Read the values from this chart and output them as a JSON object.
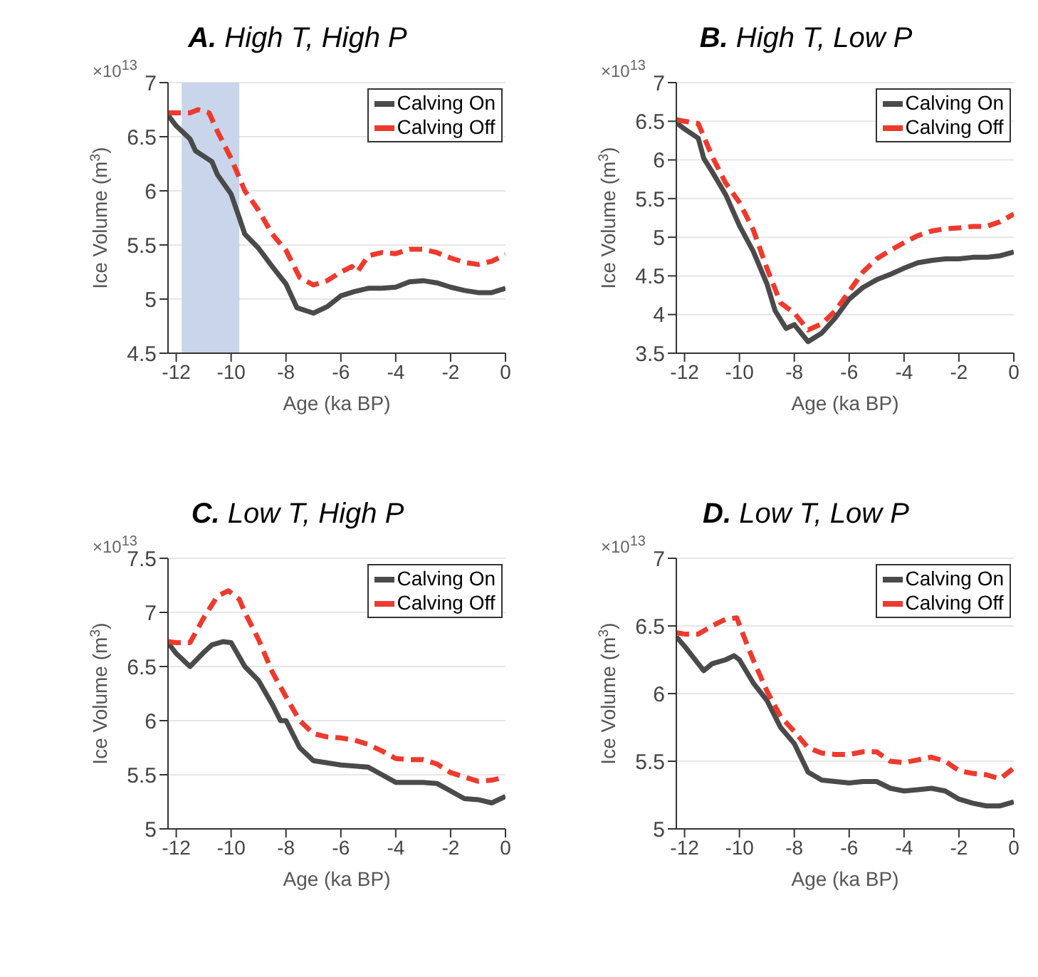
{
  "chart_data": [
    {
      "type": "line",
      "title": "A. High T, High P",
      "xlabel": "Age (ka BP)",
      "ylabel": "Ice Volume (m$^{3}$)",
      "annotations": [
        "×10$^{13}$"
      ],
      "xlim": [
        -12.3,
        0
      ],
      "xticks": [
        -12,
        -10,
        -8,
        -6,
        -4,
        -2,
        0
      ],
      "ylim": [
        4.5,
        7
      ],
      "yticks": [
        4.5,
        5,
        5.5,
        6,
        6.5,
        7
      ],
      "grid": "y",
      "legend": "top right",
      "bands": [
        {
          "axis": "x",
          "from": -11.8,
          "to": -9.7,
          "color": "#c9d5ea"
        }
      ],
      "series": [
        {
          "name": "Calving On",
          "color": "#4a4a4a",
          "line_style": "solid",
          "x": [
            -12.3,
            -12,
            -11.5,
            -11.3,
            -11,
            -10.7,
            -10.5,
            -10,
            -9.7,
            -9.5,
            -9,
            -8.5,
            -8,
            -7.6,
            -7,
            -6.5,
            -6,
            -5.5,
            -5,
            -4.5,
            -4,
            -3.5,
            -3,
            -2.5,
            -2,
            -1.5,
            -1,
            -0.5,
            0
          ],
          "values": [
            6.7,
            6.6,
            6.48,
            6.37,
            6.32,
            6.27,
            6.15,
            5.97,
            5.75,
            5.6,
            5.47,
            5.3,
            5.14,
            4.92,
            4.87,
            4.93,
            5.03,
            5.07,
            5.1,
            5.1,
            5.11,
            5.16,
            5.17,
            5.15,
            5.11,
            5.08,
            5.06,
            5.06,
            5.1
          ]
        },
        {
          "name": "Calving Off",
          "color": "#ee3a2e",
          "line_style": "dashed",
          "x": [
            -12.3,
            -12,
            -11.5,
            -11.2,
            -10.8,
            -10.5,
            -10,
            -9.5,
            -9,
            -8.5,
            -8,
            -7.5,
            -7,
            -6.5,
            -6,
            -5.6,
            -5.4,
            -5,
            -4.5,
            -4,
            -3.5,
            -3,
            -2.5,
            -2,
            -1.5,
            -1,
            -0.5,
            0
          ],
          "values": [
            6.72,
            6.72,
            6.72,
            6.75,
            6.72,
            6.55,
            6.3,
            6.0,
            5.82,
            5.6,
            5.45,
            5.2,
            5.13,
            5.17,
            5.25,
            5.3,
            5.25,
            5.4,
            5.43,
            5.42,
            5.46,
            5.46,
            5.43,
            5.38,
            5.34,
            5.32,
            5.35,
            5.41
          ]
        }
      ]
    },
    {
      "type": "line",
      "title": "B. High T, Low P",
      "xlabel": "Age (ka BP)",
      "ylabel": "Ice Volume (m$^{3}$)",
      "annotations": [
        "×10$^{13}$"
      ],
      "xlim": [
        -12.3,
        0
      ],
      "xticks": [
        -12,
        -10,
        -8,
        -6,
        -4,
        -2,
        0
      ],
      "ylim": [
        3.5,
        7
      ],
      "yticks": [
        3.5,
        4,
        4.5,
        5,
        5.5,
        6,
        6.5,
        7
      ],
      "grid": "y",
      "legend": "top right",
      "series": [
        {
          "name": "Calving On",
          "color": "#4a4a4a",
          "line_style": "solid",
          "x": [
            -12.3,
            -12,
            -11.5,
            -11.3,
            -11,
            -10.5,
            -10,
            -9.5,
            -9,
            -8.7,
            -8.3,
            -8,
            -7.5,
            -7,
            -6.5,
            -6,
            -5.5,
            -5,
            -4.5,
            -4,
            -3.5,
            -3,
            -2.5,
            -2,
            -1.5,
            -1,
            -0.5,
            0
          ],
          "values": [
            6.48,
            6.4,
            6.28,
            6.02,
            5.85,
            5.55,
            5.15,
            4.82,
            4.4,
            4.05,
            3.82,
            3.87,
            3.65,
            3.76,
            3.96,
            4.2,
            4.35,
            4.45,
            4.52,
            4.6,
            4.67,
            4.7,
            4.72,
            4.72,
            4.74,
            4.74,
            4.76,
            4.81
          ]
        },
        {
          "name": "Calving Off",
          "color": "#ee3a2e",
          "line_style": "dashed",
          "x": [
            -12.3,
            -12,
            -11.5,
            -11,
            -10.5,
            -10,
            -9.5,
            -9,
            -8.5,
            -8,
            -7.5,
            -7,
            -6.5,
            -6,
            -5.5,
            -5,
            -4.5,
            -4,
            -3.5,
            -3,
            -2.5,
            -2,
            -1.5,
            -1,
            -0.5,
            0
          ],
          "values": [
            6.52,
            6.5,
            6.47,
            6.05,
            5.7,
            5.45,
            5.1,
            4.6,
            4.15,
            4.02,
            3.8,
            3.88,
            4.05,
            4.3,
            4.55,
            4.72,
            4.83,
            4.93,
            5.02,
            5.08,
            5.11,
            5.12,
            5.14,
            5.14,
            5.2,
            5.3
          ]
        }
      ]
    },
    {
      "type": "line",
      "title": "C. Low T, High P",
      "xlabel": "Age (ka BP)",
      "ylabel": "Ice Volume (m$^{3}$)",
      "annotations": [
        "×10$^{13}$"
      ],
      "xlim": [
        -12.3,
        0
      ],
      "xticks": [
        -12,
        -10,
        -8,
        -6,
        -4,
        -2,
        0
      ],
      "ylim": [
        5,
        7.5
      ],
      "yticks": [
        5,
        5.5,
        6,
        6.5,
        7,
        7.5
      ],
      "grid": "y",
      "legend": "top right",
      "series": [
        {
          "name": "Calving On",
          "color": "#4a4a4a",
          "line_style": "solid",
          "x": [
            -12.3,
            -12,
            -11.5,
            -11,
            -10.7,
            -10.3,
            -10,
            -9.5,
            -9,
            -8.5,
            -8.2,
            -8,
            -7.5,
            -7,
            -6.5,
            -6,
            -5.5,
            -5,
            -4.5,
            -4,
            -3.5,
            -3,
            -2.5,
            -2,
            -1.5,
            -1,
            -0.5,
            0
          ],
          "values": [
            6.72,
            6.62,
            6.5,
            6.63,
            6.7,
            6.73,
            6.72,
            6.5,
            6.37,
            6.15,
            6.0,
            6.0,
            5.75,
            5.63,
            5.61,
            5.59,
            5.58,
            5.57,
            5.5,
            5.43,
            5.43,
            5.43,
            5.42,
            5.35,
            5.28,
            5.27,
            5.24,
            5.3
          ]
        },
        {
          "name": "Calving Off",
          "color": "#ee3a2e",
          "line_style": "dashed",
          "x": [
            -12.3,
            -12,
            -11.5,
            -11,
            -10.5,
            -10.1,
            -9.7,
            -9.5,
            -9,
            -8.5,
            -8,
            -7.5,
            -7,
            -6.5,
            -6,
            -5.5,
            -5,
            -4.5,
            -4,
            -3.5,
            -3,
            -2.5,
            -2,
            -1.5,
            -1,
            -0.5,
            0
          ],
          "values": [
            6.73,
            6.72,
            6.72,
            6.95,
            7.15,
            7.2,
            7.12,
            7.0,
            6.75,
            6.45,
            6.22,
            6.0,
            5.88,
            5.85,
            5.84,
            5.82,
            5.78,
            5.72,
            5.65,
            5.64,
            5.64,
            5.6,
            5.52,
            5.48,
            5.44,
            5.45,
            5.48
          ]
        }
      ]
    },
    {
      "type": "line",
      "title": "D. Low T, Low P",
      "xlabel": "Age (ka BP)",
      "ylabel": "Ice Volume (m$^{3}$)",
      "annotations": [
        "×10$^{13}$"
      ],
      "xlim": [
        -12.3,
        0
      ],
      "xticks": [
        -12,
        -10,
        -8,
        -6,
        -4,
        -2,
        0
      ],
      "ylim": [
        5,
        7
      ],
      "yticks": [
        5,
        5.5,
        6,
        6.5,
        7
      ],
      "grid": "y",
      "legend": "top right",
      "series": [
        {
          "name": "Calving On",
          "color": "#4a4a4a",
          "line_style": "solid",
          "x": [
            -12.3,
            -12,
            -11.5,
            -11.3,
            -11,
            -10.5,
            -10.2,
            -10,
            -9.5,
            -9,
            -8.5,
            -8,
            -7.5,
            -7,
            -6.5,
            -6,
            -5.5,
            -5,
            -4.5,
            -4,
            -3.5,
            -3,
            -2.5,
            -2,
            -1.5,
            -1,
            -0.5,
            0
          ],
          "values": [
            6.42,
            6.35,
            6.22,
            6.17,
            6.22,
            6.25,
            6.28,
            6.25,
            6.08,
            5.95,
            5.75,
            5.63,
            5.42,
            5.36,
            5.35,
            5.34,
            5.35,
            5.35,
            5.3,
            5.28,
            5.29,
            5.3,
            5.28,
            5.22,
            5.19,
            5.17,
            5.17,
            5.2
          ]
        },
        {
          "name": "Calving Off",
          "color": "#ee3a2e",
          "line_style": "dashed",
          "x": [
            -12.3,
            -12,
            -11.5,
            -11,
            -10.5,
            -10.1,
            -9.7,
            -9.5,
            -9,
            -8.5,
            -8,
            -7.5,
            -7,
            -6.5,
            -6,
            -5.5,
            -5,
            -4.5,
            -4,
            -3.5,
            -3,
            -2.5,
            -2,
            -1.5,
            -1,
            -0.5,
            0
          ],
          "values": [
            6.45,
            6.44,
            6.44,
            6.5,
            6.55,
            6.56,
            6.35,
            6.25,
            6.02,
            5.83,
            5.72,
            5.6,
            5.56,
            5.55,
            5.55,
            5.57,
            5.57,
            5.5,
            5.49,
            5.51,
            5.53,
            5.5,
            5.43,
            5.41,
            5.4,
            5.37,
            5.45
          ]
        }
      ]
    }
  ]
}
